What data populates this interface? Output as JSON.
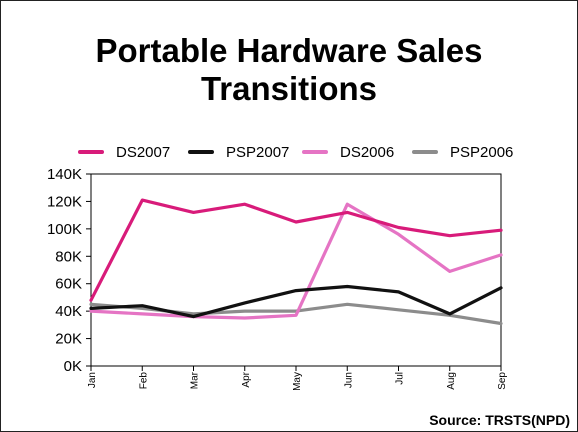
{
  "page": {
    "title_line1": "Portable Hardware Sales",
    "title_line2": "Transitions",
    "source": "Source: TRSTS(NPD)"
  },
  "chart_data": {
    "type": "line",
    "title": "Portable Hardware Sales Transitions",
    "xlabel": "",
    "ylabel": "",
    "categories": [
      "Jan",
      "Feb",
      "Mar",
      "Apr",
      "May",
      "Jun",
      "Jul",
      "Aug",
      "Sep"
    ],
    "yticks": [
      "0K",
      "20K",
      "40K",
      "60K",
      "80K",
      "100K",
      "120K",
      "140K"
    ],
    "ylim": [
      0,
      140000
    ],
    "grid": false,
    "legend_position": "top",
    "series": [
      {
        "name": "DS2007",
        "color": "#d81b7a",
        "values": [
          48000,
          121000,
          112000,
          118000,
          105000,
          112000,
          101000,
          95000,
          99000
        ]
      },
      {
        "name": "PSP2007",
        "color": "#111111",
        "values": [
          42000,
          44000,
          36000,
          46000,
          55000,
          58000,
          54000,
          38000,
          57000
        ]
      },
      {
        "name": "DS2006",
        "color": "#e574c4",
        "values": [
          40000,
          38000,
          36000,
          35000,
          37000,
          118000,
          96000,
          69000,
          81000
        ]
      },
      {
        "name": "PSP2006",
        "color": "#8c8c8c",
        "values": [
          45000,
          42000,
          38000,
          40000,
          40000,
          45000,
          41000,
          37000,
          31000
        ]
      }
    ]
  }
}
